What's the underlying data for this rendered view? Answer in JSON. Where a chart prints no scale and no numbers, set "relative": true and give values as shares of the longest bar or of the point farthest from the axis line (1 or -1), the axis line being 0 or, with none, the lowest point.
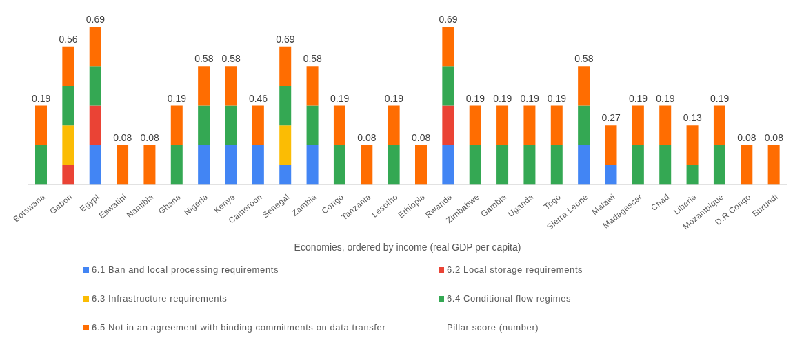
{
  "chart_data": {
    "type": "bar",
    "stacked": true,
    "relative": true,
    "xlabel": "Economies, ordered by income (real GDP per capita)",
    "categories": [
      "Botswana",
      "Gabon",
      "Egypt",
      "Eswatini",
      "Namibia",
      "Ghana",
      "Nigeria",
      "Kenya",
      "Cameroon",
      "Senegal",
      "Zambia",
      "Congo",
      "Tanzania",
      "Lesotho",
      "Ethiopia",
      "Rwanda",
      "Zimbabwe",
      "Gambia",
      "Uganda",
      "Togo",
      "Sierra Leone",
      "Malawi",
      "Madagascar",
      "Chad",
      "Liberia",
      "Mozambique",
      "D.R Congo",
      "Burundi"
    ],
    "series": [
      {
        "name": "6.1 Ban and local processing requirements",
        "color": "#4285f4",
        "values": [
          null,
          null,
          0.25,
          null,
          null,
          null,
          0.25,
          0.25,
          0.25,
          0.125,
          0.25,
          null,
          null,
          null,
          null,
          0.25,
          null,
          null,
          null,
          null,
          0.25,
          0.125,
          null,
          null,
          null,
          null,
          null,
          null
        ]
      },
      {
        "name": "6.2 Local storage requirements",
        "color": "#ea4335",
        "values": [
          null,
          0.125,
          0.25,
          null,
          null,
          null,
          null,
          null,
          null,
          null,
          null,
          null,
          null,
          null,
          null,
          0.25,
          null,
          null,
          null,
          null,
          null,
          null,
          null,
          null,
          null,
          null,
          null,
          null
        ]
      },
      {
        "name": "6.3 Infrastructure requirements",
        "color": "#fbbc04",
        "values": [
          null,
          0.25,
          null,
          null,
          null,
          null,
          null,
          null,
          null,
          0.25,
          null,
          null,
          null,
          null,
          null,
          null,
          null,
          null,
          null,
          null,
          null,
          null,
          null,
          null,
          null,
          null,
          null,
          null
        ]
      },
      {
        "name": "6.4 Conditional flow regimes",
        "color": "#34a853",
        "values": [
          0.25,
          0.25,
          0.25,
          null,
          null,
          0.25,
          0.25,
          0.25,
          null,
          0.25,
          0.25,
          0.25,
          null,
          0.25,
          null,
          0.25,
          0.25,
          0.25,
          0.25,
          0.25,
          0.25,
          null,
          0.25,
          0.25,
          0.125,
          0.25,
          null,
          null
        ]
      },
      {
        "name": "6.5 Not in an agreement with binding commitments on data transfer",
        "color": "#ff6d01",
        "values": [
          0.25,
          0.25,
          0.25,
          0.25,
          0.25,
          0.25,
          0.25,
          0.25,
          0.25,
          0.25,
          0.25,
          0.25,
          0.25,
          0.25,
          0.25,
          0.25,
          0.25,
          0.25,
          0.25,
          0.25,
          0.25,
          0.25,
          0.25,
          0.25,
          0.25,
          0.25,
          0.25,
          0.25
        ]
      }
    ],
    "annotations": [
      {
        "text": "0.19",
        "x": "Botswana",
        "y": 0.5
      },
      {
        "text": "0.56",
        "x": "Gabon",
        "y": 0.875
      },
      {
        "text": "0.69",
        "x": "Egypt",
        "y": 1
      },
      {
        "text": "0.08",
        "x": "Eswatini",
        "y": 0.25
      },
      {
        "text": "0.08",
        "x": "Namibia",
        "y": 0.25
      },
      {
        "text": "0.19",
        "x": "Ghana",
        "y": 0.5
      },
      {
        "text": "0.58",
        "x": "Nigeria",
        "y": 0.75
      },
      {
        "text": "0.58",
        "x": "Kenya",
        "y": 0.75
      },
      {
        "text": "0.46",
        "x": "Cameroon",
        "y": 0.5
      },
      {
        "text": "0.69",
        "x": "Senegal",
        "y": 0.875
      },
      {
        "text": "0.58",
        "x": "Zambia",
        "y": 0.75
      },
      {
        "text": "0.19",
        "x": "Congo",
        "y": 0.5
      },
      {
        "text": "0.08",
        "x": "Tanzania",
        "y": 0.25
      },
      {
        "text": "0.19",
        "x": "Lesotho",
        "y": 0.5
      },
      {
        "text": "0.08",
        "x": "Ethiopia",
        "y": 0.25
      },
      {
        "text": "0.69",
        "x": "Rwanda",
        "y": 1
      },
      {
        "text": "0.19",
        "x": "Zimbabwe",
        "y": 0.5
      },
      {
        "text": "0.19",
        "x": "Gambia",
        "y": 0.5
      },
      {
        "text": "0.19",
        "x": "Uganda",
        "y": 0.5
      },
      {
        "text": "0.19",
        "x": "Togo",
        "y": 0.5
      },
      {
        "text": "0.58",
        "x": "Sierra Leone",
        "y": 0.75
      },
      {
        "text": "0.27",
        "x": "Malawi",
        "y": 0.375
      },
      {
        "text": "0.19",
        "x": "Madagascar",
        "y": 0.5
      },
      {
        "text": "0.19",
        "x": "Chad",
        "y": 0.5
      },
      {
        "text": "0.13",
        "x": "Liberia",
        "y": 0.375
      },
      {
        "text": "0.19",
        "x": "Mozambique",
        "y": 0.5
      },
      {
        "text": "0.08",
        "x": "D.R Congo",
        "y": 0.25
      },
      {
        "text": "0.08",
        "x": "Burundi",
        "y": 0.25
      },
      "Pillar score (number)"
    ],
    "legend": "bottom"
  }
}
